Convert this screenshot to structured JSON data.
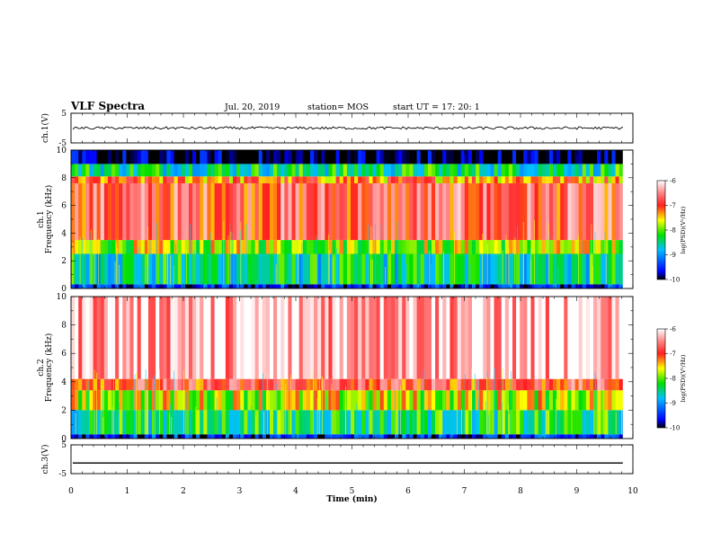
{
  "header": {
    "title": "VLF Spectra",
    "date": "Jul. 20, 2019",
    "station": "station= MOS",
    "start": "start  UT  =   17: 20: 1"
  },
  "chart_data": [
    {
      "type": "line",
      "panel": "ch1-waveform",
      "ylabel": "ch.1(V)",
      "ylim": [
        -5,
        5
      ],
      "yticks": [
        "5",
        "-5"
      ],
      "xlim": [
        0,
        10
      ],
      "series": [
        {
          "values_description": "near-constant trace at approximately 0 V with small noise",
          "level": 0
        }
      ]
    },
    {
      "type": "heatmap",
      "panel": "ch1-spectrogram",
      "ylabel": "ch.1\nFrequency (kHz)",
      "ylabel_lines": [
        "ch.1",
        "Frequency (kHz)"
      ],
      "ylim": [
        0,
        10
      ],
      "yticks": [
        "0",
        "2",
        "4",
        "6",
        "8",
        "10"
      ],
      "xlim": [
        0,
        10
      ],
      "data_end_min": 9.82,
      "bands": [
        {
          "from_khz": 0.0,
          "to_khz": 0.3,
          "level": -10
        },
        {
          "from_khz": 0.3,
          "to_khz": 2.5,
          "level": -8.8
        },
        {
          "from_khz": 2.5,
          "to_khz": 3.5,
          "level": -8.0
        },
        {
          "from_khz": 3.5,
          "to_khz": 7.6,
          "level": -6.9
        },
        {
          "from_khz": 7.6,
          "to_khz": 8.1,
          "level": -7.4
        },
        {
          "from_khz": 8.1,
          "to_khz": 9.0,
          "level": -8.7
        },
        {
          "from_khz": 9.0,
          "to_khz": 10.0,
          "level": -10.5
        }
      ],
      "colorbar": {
        "label": "log(PSD)(V²/Hz)",
        "range": [
          -10,
          -6
        ],
        "ticks": [
          "-6",
          "-7",
          "-8",
          "-9",
          "-10"
        ]
      }
    },
    {
      "type": "heatmap",
      "panel": "ch2-spectrogram",
      "ylabel": "ch.2\nFrequency (kHz)",
      "ylabel_lines": [
        "ch.2",
        "Frequency (kHz)"
      ],
      "ylim": [
        0,
        10
      ],
      "yticks": [
        "0",
        "2",
        "4",
        "6",
        "8",
        "10"
      ],
      "xlim": [
        0,
        10
      ],
      "data_end_min": 9.82,
      "bands": [
        {
          "from_khz": 0.0,
          "to_khz": 0.3,
          "level": -10
        },
        {
          "from_khz": 0.3,
          "to_khz": 2.0,
          "level": -8.6
        },
        {
          "from_khz": 2.0,
          "to_khz": 3.4,
          "level": -7.9
        },
        {
          "from_khz": 3.4,
          "to_khz": 4.2,
          "level": -7.0
        },
        {
          "from_khz": 4.2,
          "to_khz": 10.0,
          "level": -6.3
        }
      ],
      "colorbar": {
        "label": "log(PSD)(V²/Hz)",
        "range": [
          -10,
          -6
        ],
        "ticks": [
          "-6",
          "-7",
          "-8",
          "-9",
          "-10"
        ]
      }
    },
    {
      "type": "line",
      "panel": "ch3-waveform",
      "ylabel": "ch.3(V)",
      "ylim": [
        -5,
        5
      ],
      "yticks": [
        "5",
        "-5"
      ],
      "xlim": [
        0,
        10
      ],
      "xlabel": "Time (min)",
      "xticks": [
        "0",
        "1",
        "2",
        "3",
        "4",
        "5",
        "6",
        "7",
        "8",
        "9",
        "10"
      ],
      "series": [
        {
          "values_description": "flat trace at approximately -1.3 V",
          "level": -1.3
        }
      ]
    }
  ]
}
